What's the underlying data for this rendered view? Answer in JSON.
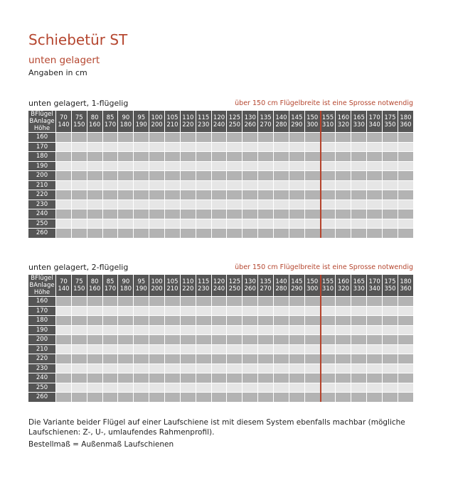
{
  "title": "Schiebetür ST",
  "subtitle": "unten gelagert",
  "units": "Angaben in cm",
  "colors": {
    "accent": "#b5462f",
    "header": "#555555",
    "row_dark": "#b3b3b3",
    "row_light": "#e6e6e6"
  },
  "row_header": [
    "BFlügel",
    "BAnlage",
    "Höhe"
  ],
  "widths_fluegel": [
    "70",
    "75",
    "80",
    "85",
    "90",
    "95",
    "100",
    "105",
    "110",
    "115",
    "120",
    "125",
    "130",
    "135",
    "140",
    "145",
    "150",
    "155",
    "160",
    "165",
    "170",
    "175",
    "180"
  ],
  "widths_anlage": [
    "140",
    "150",
    "160",
    "170",
    "180",
    "190",
    "200",
    "210",
    "220",
    "230",
    "240",
    "250",
    "260",
    "270",
    "280",
    "290",
    "300",
    "310",
    "320",
    "330",
    "340",
    "350",
    "360"
  ],
  "heights": [
    "160",
    "170",
    "180",
    "190",
    "200",
    "210",
    "220",
    "230",
    "240",
    "250",
    "260"
  ],
  "tables": [
    {
      "title": "unten gelagert, 1-flügelig",
      "note": "über 150 cm Flügelbreite ist eine Sprosse notwendig"
    },
    {
      "title": "unten gelagert, 2-flügelig",
      "note": "über 150 cm Flügelbreite ist eine Sprosse notwendig"
    }
  ],
  "footer": {
    "line1": "Die Variante beider Flügel auf einer Laufschiene ist mit diesem System ebenfalls machbar (mögliche Laufschienen: Z-, U-, umlaufendes Rahmenprofil).",
    "line2": "Bestellmaß = Außenmaß Laufschienen"
  }
}
